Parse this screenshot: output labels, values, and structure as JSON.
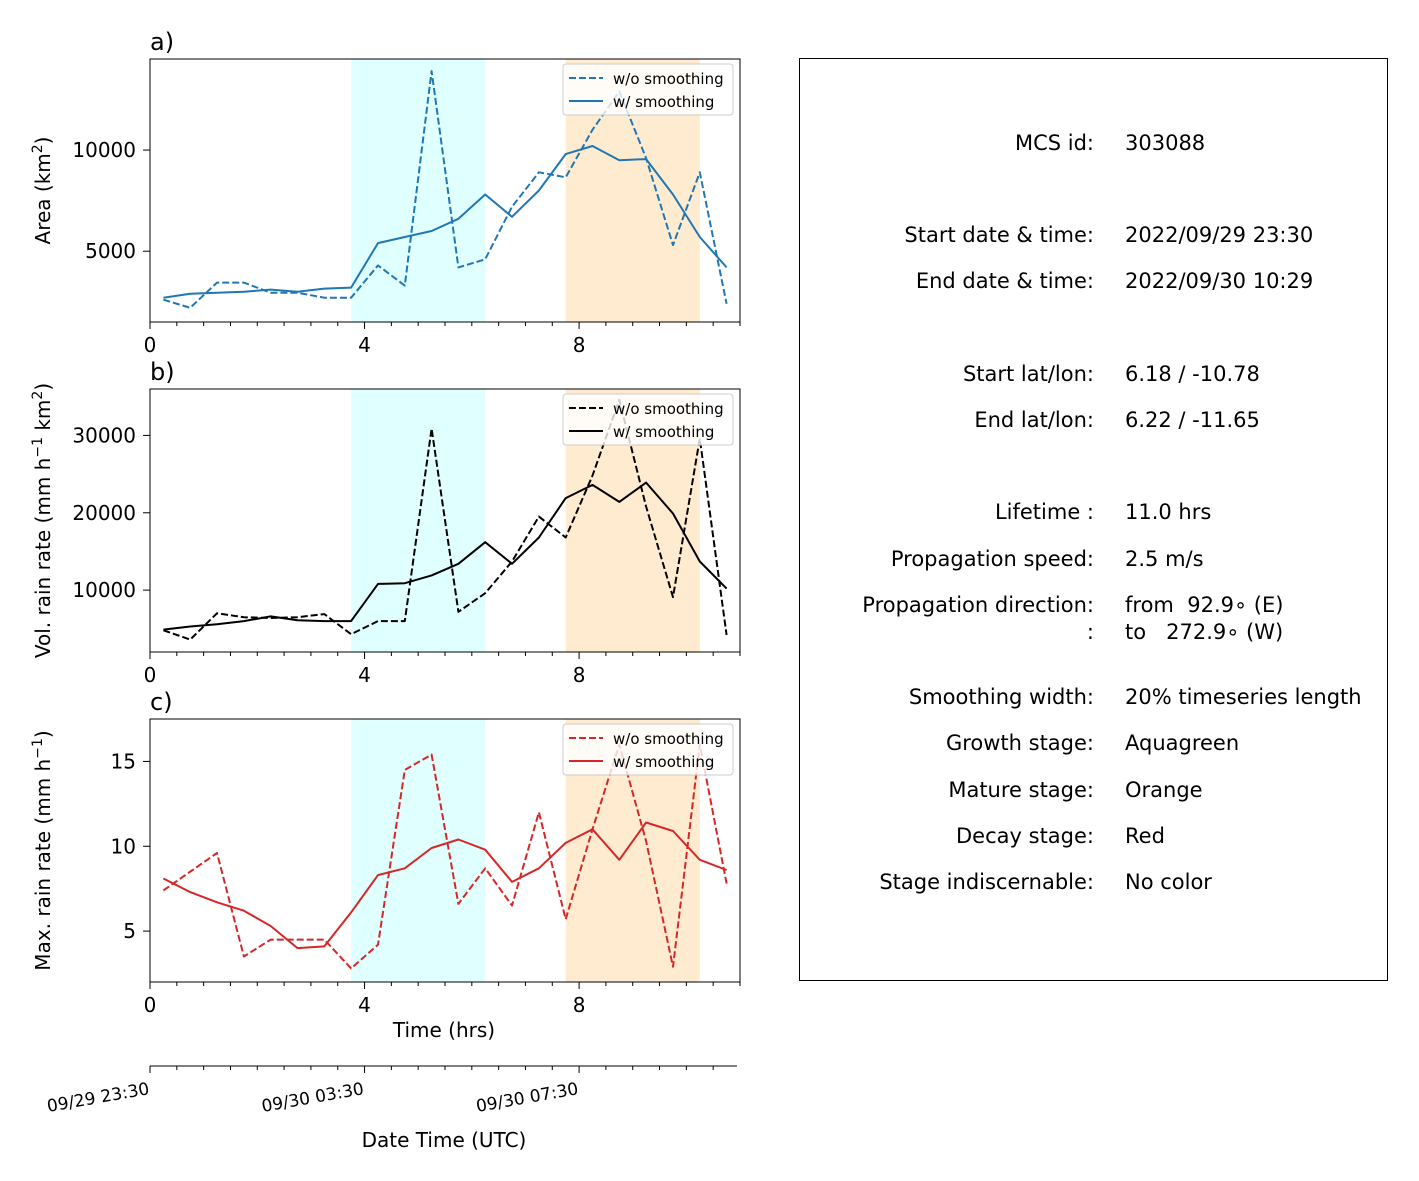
{
  "chart_data": [
    {
      "panel_label": "a)",
      "type": "line",
      "ylabel_html": [
        "Area  (km",
        "2",
        ")"
      ],
      "yticks": [
        5000,
        10000
      ],
      "ylim": [
        1500,
        14500
      ],
      "xlim": [
        0,
        11
      ],
      "xticks": [
        0,
        4,
        8
      ],
      "color": "#1f77b4",
      "legend_position": "top-right",
      "series": [
        {
          "name": "w/o smoothing",
          "style": "dashed",
          "x": [
            0.25,
            0.75,
            1.25,
            1.75,
            2.25,
            2.75,
            3.25,
            3.75,
            4.25,
            4.75,
            5.25,
            5.75,
            6.25,
            6.75,
            7.25,
            7.75,
            8.25,
            8.75,
            9.25,
            9.75,
            10.25,
            10.75
          ],
          "y": [
            2600,
            2200,
            3450,
            3450,
            2950,
            2950,
            2700,
            2700,
            4300,
            3300,
            13900,
            4200,
            4600,
            7200,
            8900,
            8650,
            11000,
            12900,
            9600,
            5300,
            8900,
            2400
          ]
        },
        {
          "name": "w/ smoothing",
          "style": "solid",
          "x": [
            0.25,
            0.75,
            1.25,
            1.75,
            2.25,
            2.75,
            3.25,
            3.75,
            4.25,
            4.75,
            5.25,
            5.75,
            6.25,
            6.75,
            7.25,
            7.75,
            8.25,
            8.75,
            9.25,
            9.75,
            10.25,
            10.75
          ],
          "y": [
            2700,
            2900,
            2950,
            3000,
            3100,
            3000,
            3150,
            3200,
            5400,
            5700,
            6000,
            6600,
            7800,
            6700,
            8000,
            9800,
            10200,
            9500,
            9550,
            7800,
            5700,
            4200
          ]
        }
      ]
    },
    {
      "panel_label": "b)",
      "type": "line",
      "ylabel_html": [
        "Vol. rain rate (mm h",
        "−1",
        " km",
        "2",
        ")"
      ],
      "yticks": [
        10000,
        20000,
        30000
      ],
      "ylim": [
        2000,
        36000
      ],
      "xlim": [
        0,
        11
      ],
      "xticks": [
        0,
        4,
        8
      ],
      "color": "#000000",
      "legend_position": "top-right",
      "series": [
        {
          "name": "w/o smoothing",
          "style": "dashed",
          "x": [
            0.25,
            0.75,
            1.25,
            1.75,
            2.25,
            2.75,
            3.25,
            3.75,
            4.25,
            4.75,
            5.25,
            5.75,
            6.25,
            6.75,
            7.25,
            7.75,
            8.25,
            8.75,
            9.25,
            9.75,
            10.25,
            10.75
          ],
          "y": [
            4800,
            3600,
            7000,
            6500,
            6400,
            6500,
            6900,
            4300,
            6000,
            6000,
            30900,
            7200,
            9600,
            13700,
            19500,
            16800,
            24800,
            34600,
            20800,
            9100,
            29600,
            4200
          ]
        },
        {
          "name": "w/ smoothing",
          "style": "solid",
          "x": [
            0.25,
            0.75,
            1.25,
            1.75,
            2.25,
            2.75,
            3.25,
            3.75,
            4.25,
            4.75,
            5.25,
            5.75,
            6.25,
            6.75,
            7.25,
            7.75,
            8.25,
            8.75,
            9.25,
            9.75,
            10.25,
            10.75
          ],
          "y": [
            4900,
            5300,
            5600,
            6000,
            6600,
            6100,
            6000,
            6000,
            10800,
            10900,
            11900,
            13400,
            16200,
            13400,
            16800,
            21900,
            23600,
            21400,
            23900,
            19900,
            13700,
            10200
          ]
        }
      ]
    },
    {
      "panel_label": "c)",
      "type": "line",
      "ylabel_html": [
        "Max. rain rate  (mm h",
        "−1",
        ")"
      ],
      "yticks": [
        5,
        10,
        15
      ],
      "ylim": [
        2,
        17.5
      ],
      "xlim": [
        0,
        11
      ],
      "xticks": [
        0,
        4,
        8
      ],
      "xlabel": "Time (hrs)",
      "color": "#d62728",
      "legend_position": "top-right",
      "series": [
        {
          "name": "w/o smoothing",
          "style": "dashed",
          "x": [
            0.25,
            0.75,
            1.25,
            1.75,
            2.25,
            2.75,
            3.25,
            3.75,
            4.25,
            4.75,
            5.25,
            5.75,
            6.25,
            6.75,
            7.25,
            7.75,
            8.25,
            8.75,
            9.25,
            9.75,
            10.25,
            10.75
          ],
          "y": [
            7.4,
            8.5,
            9.6,
            3.5,
            4.5,
            4.5,
            4.5,
            2.8,
            4.2,
            14.5,
            15.4,
            6.6,
            8.7,
            6.5,
            12.0,
            5.7,
            11.0,
            16.0,
            10.3,
            2.9,
            16.0,
            7.8
          ]
        },
        {
          "name": "w/ smoothing",
          "style": "solid",
          "x": [
            0.25,
            0.75,
            1.25,
            1.75,
            2.25,
            2.75,
            3.25,
            3.75,
            4.25,
            4.75,
            5.25,
            5.75,
            6.25,
            6.75,
            7.25,
            7.75,
            8.25,
            8.75,
            9.25,
            9.75,
            10.25,
            10.75
          ],
          "y": [
            8.1,
            7.3,
            6.7,
            6.2,
            5.3,
            4.0,
            4.1,
            6.1,
            8.3,
            8.7,
            9.9,
            10.4,
            9.8,
            7.9,
            8.7,
            10.2,
            11.0,
            9.2,
            11.4,
            10.9,
            9.2,
            8.6
          ]
        }
      ]
    }
  ],
  "stages": [
    {
      "name": "growth",
      "start": 3.75,
      "end": 6.25,
      "color": "#e0ffff"
    },
    {
      "name": "mature",
      "start": 7.75,
      "end": 10.25,
      "color": "#ffecd0"
    }
  ],
  "date_axis": {
    "xlabel": "Date Time (UTC)",
    "ticks": [
      {
        "x": 0,
        "label": "09/29 23:30"
      },
      {
        "x": 4,
        "label": "09/30 03:30"
      },
      {
        "x": 8,
        "label": "09/30 07:30"
      }
    ]
  },
  "info": {
    "mcs_id_label": "MCS id:",
    "mcs_id": "303088",
    "start_time_label": "Start date & time:",
    "start_time": "2022/09/29 23:30",
    "end_time_label": "End date & time:",
    "end_time": "2022/09/30 10:29",
    "start_latlon_label": "Start lat/lon:",
    "start_latlon": "6.18 / -10.78",
    "end_latlon_label": "End lat/lon:",
    "end_latlon": "6.22 / -11.65",
    "lifetime_label": "Lifetime :",
    "lifetime": "11.0 hrs",
    "speed_label": "Propagation speed:",
    "speed": "2.5 m/s",
    "direction_label": "Propagation direction:",
    "direction_from": "from  92.9∘ (E)",
    "direction_label2": ":",
    "direction_to": "to   272.9∘ (W)",
    "smoothing_label": "Smoothing width:",
    "smoothing": "20% timeseries length",
    "growth_label": "Growth stage:",
    "growth": "Aquagreen",
    "mature_label": "Mature stage:",
    "mature": "Orange",
    "decay_label": "Decay stage:",
    "decay": "Red",
    "indisc_label": "Stage indiscernable:",
    "indisc": "No color"
  }
}
